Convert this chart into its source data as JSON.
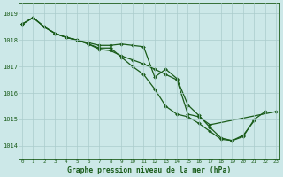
{
  "title": "Graphe pression niveau de la mer (hPa)",
  "bg_color": "#cce8e8",
  "line_color": "#1a5c1a",
  "grid_color": "#aacccc",
  "ylim": [
    1013.5,
    1019.4
  ],
  "xlim": [
    -0.3,
    23.3
  ],
  "yticks": [
    1014,
    1015,
    1016,
    1017,
    1018,
    1019
  ],
  "xticks": [
    0,
    1,
    2,
    3,
    4,
    5,
    6,
    7,
    8,
    9,
    10,
    11,
    12,
    13,
    14,
    15,
    16,
    17,
    18,
    19,
    20,
    21,
    22,
    23
  ],
  "series1_x": [
    0,
    1,
    2,
    3,
    4,
    5,
    6,
    7,
    8,
    9,
    10,
    11,
    12,
    13,
    14,
    15,
    16,
    17,
    18,
    19,
    20,
    21,
    22
  ],
  "series1_y": [
    1018.6,
    1018.85,
    1018.5,
    1018.25,
    1018.1,
    1018.0,
    1017.9,
    1017.8,
    1017.8,
    1017.85,
    1017.8,
    1017.75,
    1016.6,
    1016.9,
    1016.55,
    1015.55,
    1015.15,
    1014.7,
    1014.3,
    1014.2,
    1014.35,
    1015.0,
    1015.3
  ],
  "series2_x": [
    0,
    1,
    2,
    3,
    4,
    5,
    6,
    7,
    8,
    9,
    10,
    11,
    12,
    13,
    14,
    15,
    16,
    17,
    18,
    19,
    20,
    21
  ],
  "series2_y": [
    1018.6,
    1018.85,
    1018.5,
    1018.25,
    1018.1,
    1018.0,
    1017.85,
    1017.7,
    1017.7,
    1017.35,
    1017.0,
    1016.7,
    1016.15,
    1015.5,
    1015.2,
    1015.1,
    1014.85,
    1014.55,
    1014.25,
    1014.2,
    1014.4,
    1014.95
  ],
  "series3_x": [
    0,
    1,
    2,
    3,
    4,
    5,
    6,
    7,
    8,
    9,
    10,
    11,
    12,
    13,
    14,
    15,
    16,
    17,
    23
  ],
  "series3_y": [
    1018.6,
    1018.85,
    1018.5,
    1018.25,
    1018.1,
    1018.0,
    1017.85,
    1017.65,
    1017.6,
    1017.4,
    1017.25,
    1017.1,
    1016.9,
    1016.7,
    1016.5,
    1015.2,
    1015.1,
    1014.8,
    1015.3
  ]
}
